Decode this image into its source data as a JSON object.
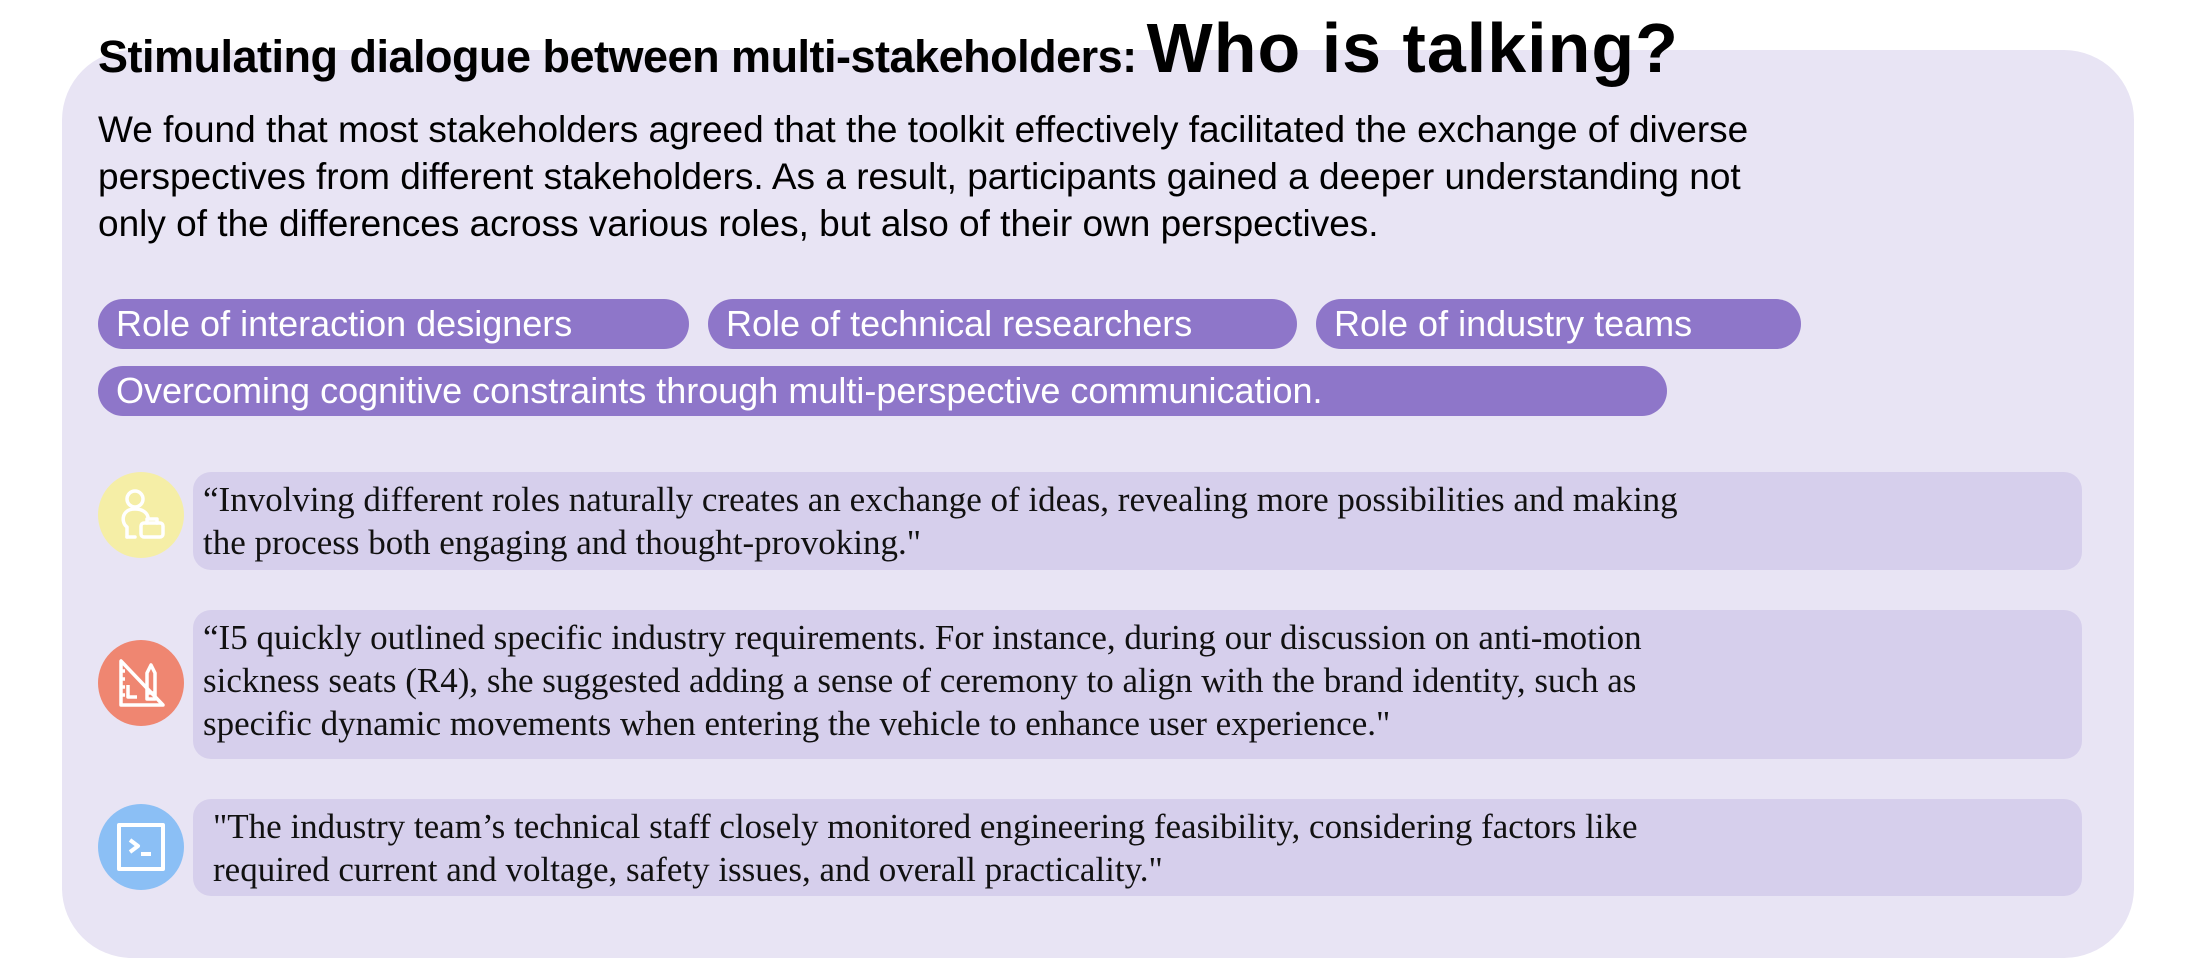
{
  "title": {
    "subtitle": "Stimulating dialogue between multi-stakeholders:",
    "headline": "Who is talking?"
  },
  "intro_lines": [
    "We found that most stakeholders agreed that the toolkit effectively facilitated the exchange of diverse",
    "perspectives from different stakeholders. As a result, participants gained a deeper understanding not",
    "only of the differences across various roles, but also of their own perspectives."
  ],
  "tags": [
    "Role of interaction designers",
    "Role of technical researchers",
    "Role of industry teams",
    "Overcoming cognitive constraints through multi-perspective communication."
  ],
  "quotes": [
    {
      "icon": "person-briefcase-icon",
      "color": "#f5eea6",
      "lines": [
        "“Involving different roles naturally creates an exchange of ideas, revealing more possibilities and making",
        "the process both engaging and thought-provoking.\""
      ]
    },
    {
      "icon": "ruler-pencil-icon",
      "color": "#ef8671",
      "lines": [
        "“I5 quickly outlined specific industry requirements. For instance, during our discussion on anti-motion",
        "sickness seats (R4), she suggested adding a sense of ceremony to align with the brand identity, such as",
        "specific dynamic movements when entering the vehicle to enhance user experience.\""
      ]
    },
    {
      "icon": "terminal-icon",
      "color": "#8bbff5",
      "lines": [
        "\"The industry team’s technical staff closely monitored engineering feasibility, considering factors like",
        "required current and voltage, safety issues, and overall practicality.\""
      ]
    }
  ],
  "colors": {
    "panel": "#e8e4f4",
    "tag": "#8e76c9",
    "quote_box": "#d6cfec"
  }
}
